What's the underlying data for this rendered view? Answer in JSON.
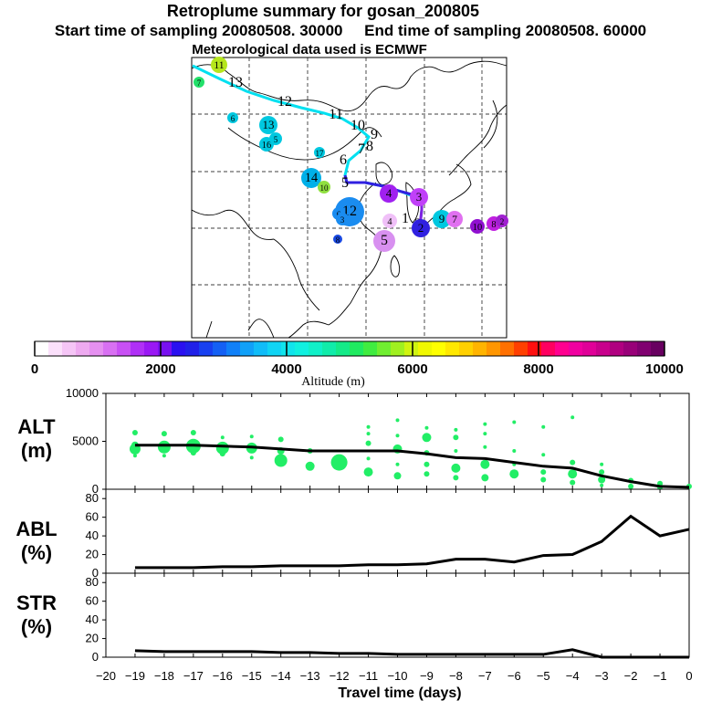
{
  "header": {
    "title": "Retroplume summary for gosan_200805",
    "start_label": "Start time of sampling 20080508. 30000",
    "end_label": "End time of sampling 20080508. 60000",
    "met_label": "Meteorological data used is ECMWF"
  },
  "colorbar": {
    "labels": [
      "0",
      "2000",
      "4000",
      "6000",
      "8000",
      "10000"
    ],
    "title": "Altitude  (m)"
  },
  "map": {
    "track_labels": [
      {
        "text": "13"
      },
      {
        "text": "12"
      },
      {
        "text": "11"
      },
      {
        "text": "10"
      },
      {
        "text": "9"
      },
      {
        "text": "8"
      },
      {
        "text": "7"
      },
      {
        "text": "6"
      },
      {
        "text": "5"
      },
      {
        "text": "4"
      },
      {
        "text": "3"
      },
      {
        "text": "2"
      },
      {
        "text": "1"
      }
    ],
    "clusters": [
      {
        "label": "11",
        "color": "#b5e61d",
        "size": 9
      },
      {
        "label": "7",
        "color": "#22e06a",
        "size": 6
      },
      {
        "label": "6",
        "color": "#00c8e0",
        "size": 6
      },
      {
        "label": "13",
        "color": "#00c8e0",
        "size": 10
      },
      {
        "label": "16",
        "color": "#00c8e0",
        "size": 8
      },
      {
        "label": "5",
        "color": "#00c8e0",
        "size": 7
      },
      {
        "label": "17",
        "color": "#00c8e0",
        "size": 6
      },
      {
        "label": "14",
        "color": "#00b0e8",
        "size": 11
      },
      {
        "label": "10",
        "color": "#90e040",
        "size": 7
      },
      {
        "label": "12",
        "color": "#1a8cf0",
        "size": 16
      },
      {
        "label": "6",
        "color": "#1a8cf0",
        "size": 7
      },
      {
        "label": "3",
        "color": "#1a8cf0",
        "size": 7
      },
      {
        "label": "8",
        "color": "#1848e0",
        "size": 5
      },
      {
        "label": "4",
        "color": "#a020f0",
        "size": 10
      },
      {
        "label": "3",
        "color": "#c040f8",
        "size": 10
      },
      {
        "label": "9",
        "color": "#00c8e0",
        "size": 10
      },
      {
        "label": "7",
        "color": "#e070f0",
        "size": 9
      },
      {
        "label": "2",
        "color": "#3020e0",
        "size": 10
      },
      {
        "label": "4",
        "color": "#f0c0f8",
        "size": 8
      },
      {
        "label": "5",
        "color": "#d890f0",
        "size": 12
      },
      {
        "label": "10",
        "color": "#9010d0",
        "size": 8
      },
      {
        "label": "8",
        "color": "#c020e0",
        "size": 8
      },
      {
        "label": "2",
        "color": "#a020d0",
        "size": 7
      }
    ]
  },
  "chart_data": [
    {
      "type": "scatter+line",
      "panel": "ALT",
      "ylabel": "ALT\n(m)",
      "ylabel_lines": [
        "ALT",
        "(m)"
      ],
      "ylim": [
        0,
        10000
      ],
      "yticks": [
        0,
        5000,
        10000
      ],
      "xlim": [
        -20,
        0
      ],
      "mean_line": {
        "x": [
          -19,
          -18,
          -17,
          -16,
          -15,
          -14,
          -13,
          -12,
          -11,
          -10,
          -9,
          -8,
          -7,
          -6,
          -5,
          -4,
          -3,
          -2,
          -1,
          0
        ],
        "y": [
          4600,
          4600,
          4600,
          4500,
          4400,
          4200,
          4000,
          4000,
          4000,
          4000,
          3700,
          3300,
          3200,
          2800,
          2400,
          2200,
          1400,
          800,
          300,
          200
        ]
      },
      "points": [
        {
          "x": -19,
          "y": 5900,
          "s": 3
        },
        {
          "x": -19,
          "y": 4600,
          "s": 4
        },
        {
          "x": -19,
          "y": 4200,
          "s": 6
        },
        {
          "x": -19,
          "y": 3500,
          "s": 2
        },
        {
          "x": -18,
          "y": 5800,
          "s": 3
        },
        {
          "x": -18,
          "y": 4400,
          "s": 7
        },
        {
          "x": -18,
          "y": 3500,
          "s": 2
        },
        {
          "x": -17,
          "y": 5900,
          "s": 3
        },
        {
          "x": -17,
          "y": 4500,
          "s": 8
        },
        {
          "x": -17,
          "y": 3800,
          "s": 3
        },
        {
          "x": -16,
          "y": 5400,
          "s": 2
        },
        {
          "x": -16,
          "y": 4300,
          "s": 7
        },
        {
          "x": -16,
          "y": 3700,
          "s": 3
        },
        {
          "x": -15,
          "y": 5500,
          "s": 2
        },
        {
          "x": -15,
          "y": 4300,
          "s": 6
        },
        {
          "x": -15,
          "y": 3300,
          "s": 2
        },
        {
          "x": -14,
          "y": 5200,
          "s": 3
        },
        {
          "x": -14,
          "y": 4000,
          "s": 4
        },
        {
          "x": -14,
          "y": 3000,
          "s": 7
        },
        {
          "x": -13,
          "y": 4000,
          "s": 3
        },
        {
          "x": -13,
          "y": 2400,
          "s": 5
        },
        {
          "x": -12,
          "y": 2800,
          "s": 9
        },
        {
          "x": -11,
          "y": 6500,
          "s": 2
        },
        {
          "x": -11,
          "y": 5800,
          "s": 2
        },
        {
          "x": -11,
          "y": 4800,
          "s": 3
        },
        {
          "x": -11,
          "y": 3200,
          "s": 2
        },
        {
          "x": -11,
          "y": 1800,
          "s": 5
        },
        {
          "x": -10,
          "y": 7200,
          "s": 2
        },
        {
          "x": -10,
          "y": 5600,
          "s": 2
        },
        {
          "x": -10,
          "y": 4200,
          "s": 5
        },
        {
          "x": -10,
          "y": 2600,
          "s": 2
        },
        {
          "x": -10,
          "y": 1400,
          "s": 4
        },
        {
          "x": -9,
          "y": 6400,
          "s": 2
        },
        {
          "x": -9,
          "y": 5400,
          "s": 5
        },
        {
          "x": -9,
          "y": 3800,
          "s": 3
        },
        {
          "x": -9,
          "y": 2600,
          "s": 3
        },
        {
          "x": -9,
          "y": 1600,
          "s": 3
        },
        {
          "x": -8,
          "y": 6200,
          "s": 2
        },
        {
          "x": -8,
          "y": 5400,
          "s": 3
        },
        {
          "x": -8,
          "y": 4000,
          "s": 2
        },
        {
          "x": -8,
          "y": 2200,
          "s": 5
        },
        {
          "x": -8,
          "y": 1200,
          "s": 3
        },
        {
          "x": -7,
          "y": 6800,
          "s": 2
        },
        {
          "x": -7,
          "y": 5800,
          "s": 2
        },
        {
          "x": -7,
          "y": 4400,
          "s": 2
        },
        {
          "x": -7,
          "y": 2600,
          "s": 5
        },
        {
          "x": -7,
          "y": 1200,
          "s": 4
        },
        {
          "x": -6,
          "y": 7000,
          "s": 2
        },
        {
          "x": -6,
          "y": 4000,
          "s": 2
        },
        {
          "x": -6,
          "y": 2600,
          "s": 2
        },
        {
          "x": -6,
          "y": 1600,
          "s": 5
        },
        {
          "x": -5,
          "y": 6500,
          "s": 2
        },
        {
          "x": -5,
          "y": 3600,
          "s": 2
        },
        {
          "x": -5,
          "y": 1800,
          "s": 3
        },
        {
          "x": -5,
          "y": 1000,
          "s": 3
        },
        {
          "x": -4,
          "y": 7500,
          "s": 2
        },
        {
          "x": -4,
          "y": 2800,
          "s": 3
        },
        {
          "x": -4,
          "y": 1600,
          "s": 5
        },
        {
          "x": -4,
          "y": 700,
          "s": 3
        },
        {
          "x": -3,
          "y": 2600,
          "s": 2
        },
        {
          "x": -3,
          "y": 1800,
          "s": 3
        },
        {
          "x": -3,
          "y": 1000,
          "s": 4
        },
        {
          "x": -3,
          "y": 400,
          "s": 2
        },
        {
          "x": -2,
          "y": 900,
          "s": 3
        },
        {
          "x": -2,
          "y": 300,
          "s": 3
        },
        {
          "x": -1,
          "y": 600,
          "s": 3
        },
        {
          "x": -1,
          "y": 200,
          "s": 3
        },
        {
          "x": 0,
          "y": 300,
          "s": 3
        }
      ]
    },
    {
      "type": "line",
      "panel": "ABL",
      "ylabel": "ABL\n(%)",
      "ylabel_lines": [
        "ABL",
        "(%)"
      ],
      "ylim": [
        0,
        90
      ],
      "yticks": [
        0,
        20,
        40,
        60,
        80
      ],
      "xlim": [
        -20,
        0
      ],
      "x": [
        -19,
        -18,
        -17,
        -16,
        -15,
        -14,
        -13,
        -12,
        -11,
        -10,
        -9,
        -8,
        -7,
        -6,
        -5,
        -4,
        -3,
        -2,
        -1,
        0
      ],
      "y": [
        6,
        6,
        6,
        7,
        7,
        8,
        8,
        8,
        9,
        9,
        10,
        15,
        15,
        12,
        19,
        20,
        34,
        61,
        40,
        47
      ]
    },
    {
      "type": "line",
      "panel": "STR",
      "ylabel": "STR\n(%)",
      "ylabel_lines": [
        "STR",
        "(%)"
      ],
      "ylim": [
        0,
        90
      ],
      "yticks": [
        0,
        20,
        40,
        60,
        80
      ],
      "xlim": [
        -20,
        0
      ],
      "x": [
        -19,
        -18,
        -17,
        -16,
        -15,
        -14,
        -13,
        -12,
        -11,
        -10,
        -9,
        -8,
        -7,
        -6,
        -5,
        -4,
        -3,
        -2,
        -1,
        0
      ],
      "y": [
        7,
        6,
        6,
        6,
        6,
        5,
        5,
        4,
        4,
        3,
        3,
        3,
        3,
        3,
        3,
        8,
        0,
        0,
        0,
        0
      ]
    }
  ],
  "xaxis": {
    "label": "Travel time (days)",
    "ticks": [
      -20,
      -19,
      -18,
      -17,
      -16,
      -15,
      -14,
      -13,
      -12,
      -11,
      -10,
      -9,
      -8,
      -7,
      -6,
      -5,
      -4,
      -3,
      -2,
      -1,
      0
    ]
  }
}
